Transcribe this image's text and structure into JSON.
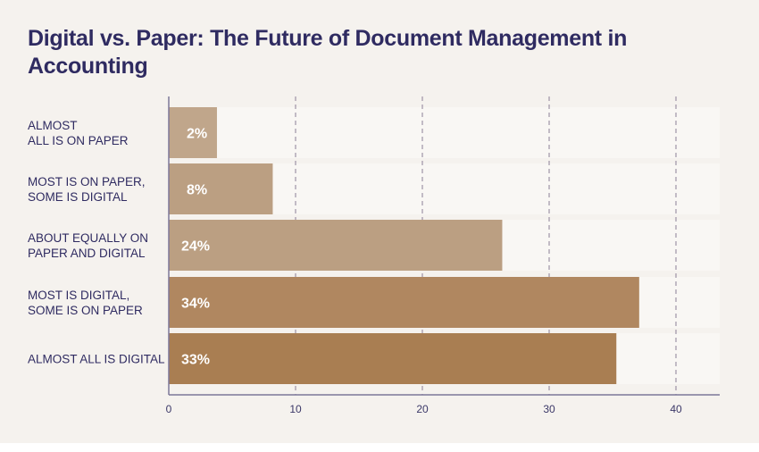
{
  "chart_data": {
    "type": "bar",
    "orientation": "horizontal",
    "title": "Digital vs. Paper: The Future of Document Management in Accounting",
    "categories": [
      [
        "ALMOST",
        "ALL IS ON PAPER"
      ],
      [
        "MOST IS ON PAPER,",
        "SOME IS DIGITAL"
      ],
      [
        "ABOUT EQUALLY ON",
        "PAPER AND DIGITAL"
      ],
      [
        "MOST IS DIGITAL,",
        "SOME IS ON PAPER"
      ],
      [
        "ALMOST ALL IS DIGITAL"
      ]
    ],
    "values": [
      2,
      8,
      24,
      34,
      33
    ],
    "value_labels": [
      "2%",
      "8%",
      "24%",
      "34%",
      "33%"
    ],
    "bar_extent": [
      3.8,
      8.2,
      26.3,
      37.1,
      35.3
    ],
    "xlim": [
      0,
      43.4
    ],
    "xticks": [
      0,
      10,
      20,
      30,
      40
    ],
    "grid": "vertical dashed",
    "colors": [
      "#c0a68b",
      "#bb9f82",
      "#bb9f82",
      "#b08760",
      "#a97e52"
    ],
    "xlabel": "",
    "ylabel": ""
  }
}
